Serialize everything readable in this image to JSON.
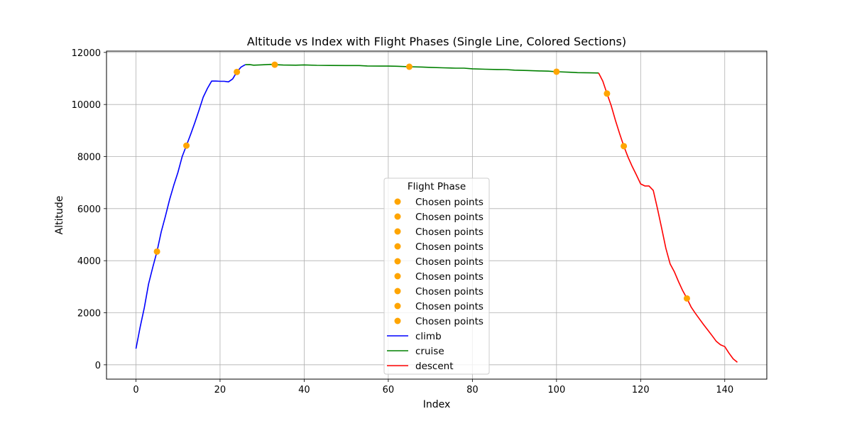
{
  "chart_data": {
    "type": "line",
    "title": "Altitude vs Index with Flight Phases (Single Line, Colored Sections)",
    "xlabel": "Index",
    "ylabel": "Altitude",
    "xlim": [
      -7,
      150
    ],
    "ylim": [
      -550,
      12050
    ],
    "xticks": [
      0,
      20,
      40,
      60,
      80,
      100,
      120,
      140
    ],
    "yticks": [
      0,
      2000,
      4000,
      6000,
      8000,
      10000,
      12000
    ],
    "grid": true,
    "series": [
      {
        "name": "climb",
        "color": "#0000ff",
        "points": [
          [
            0,
            620
          ],
          [
            1,
            1450
          ],
          [
            2,
            2200
          ],
          [
            3,
            3100
          ],
          [
            4,
            3750
          ],
          [
            5,
            4350
          ],
          [
            6,
            5100
          ],
          [
            7,
            5700
          ],
          [
            8,
            6350
          ],
          [
            9,
            6900
          ],
          [
            10,
            7400
          ],
          [
            11,
            8000
          ],
          [
            12,
            8420
          ],
          [
            13,
            8850
          ],
          [
            14,
            9300
          ],
          [
            15,
            9780
          ],
          [
            16,
            10280
          ],
          [
            17,
            10620
          ],
          [
            18,
            10900
          ],
          [
            19,
            10900
          ],
          [
            20,
            10890
          ],
          [
            21,
            10890
          ],
          [
            22,
            10870
          ],
          [
            23,
            10980
          ],
          [
            24,
            11250
          ],
          [
            25,
            11440
          ],
          [
            26,
            11530
          ]
        ]
      },
      {
        "name": "cruise",
        "color": "#008000",
        "points": [
          [
            26,
            11530
          ],
          [
            27,
            11535
          ],
          [
            28,
            11510
          ],
          [
            30,
            11525
          ],
          [
            32,
            11540
          ],
          [
            33,
            11530
          ],
          [
            35,
            11515
          ],
          [
            38,
            11510
          ],
          [
            40,
            11520
          ],
          [
            43,
            11505
          ],
          [
            46,
            11500
          ],
          [
            50,
            11495
          ],
          [
            53,
            11495
          ],
          [
            55,
            11480
          ],
          [
            58,
            11475
          ],
          [
            60,
            11475
          ],
          [
            62,
            11470
          ],
          [
            65,
            11450
          ],
          [
            68,
            11440
          ],
          [
            70,
            11425
          ],
          [
            73,
            11410
          ],
          [
            76,
            11395
          ],
          [
            78,
            11395
          ],
          [
            80,
            11370
          ],
          [
            83,
            11355
          ],
          [
            86,
            11345
          ],
          [
            88,
            11340
          ],
          [
            90,
            11320
          ],
          [
            93,
            11305
          ],
          [
            96,
            11290
          ],
          [
            98,
            11280
          ],
          [
            100,
            11260
          ],
          [
            103,
            11240
          ],
          [
            105,
            11225
          ],
          [
            108,
            11215
          ],
          [
            110,
            11210
          ]
        ]
      },
      {
        "name": "descent",
        "color": "#ff0000",
        "points": [
          [
            110,
            11210
          ],
          [
            111,
            10900
          ],
          [
            112,
            10420
          ],
          [
            113,
            9960
          ],
          [
            114,
            9390
          ],
          [
            115,
            8880
          ],
          [
            116,
            8400
          ],
          [
            117,
            7980
          ],
          [
            118,
            7620
          ],
          [
            119,
            7290
          ],
          [
            120,
            6950
          ],
          [
            121,
            6870
          ],
          [
            122,
            6870
          ],
          [
            123,
            6700
          ],
          [
            124,
            6000
          ],
          [
            125,
            5250
          ],
          [
            126,
            4480
          ],
          [
            127,
            3880
          ],
          [
            128,
            3580
          ],
          [
            129,
            3200
          ],
          [
            130,
            2850
          ],
          [
            131,
            2550
          ],
          [
            132,
            2220
          ],
          [
            133,
            1980
          ],
          [
            134,
            1760
          ],
          [
            135,
            1540
          ],
          [
            136,
            1330
          ],
          [
            137,
            1120
          ],
          [
            138,
            900
          ],
          [
            139,
            770
          ],
          [
            140,
            700
          ],
          [
            141,
            450
          ],
          [
            142,
            230
          ],
          [
            143,
            100
          ]
        ]
      }
    ],
    "chosen_points": {
      "label": "Chosen points",
      "color": "#ffa500",
      "points": [
        [
          5,
          4350
        ],
        [
          12,
          8420
        ],
        [
          24,
          11250
        ],
        [
          33,
          11530
        ],
        [
          65,
          11450
        ],
        [
          100,
          11260
        ],
        [
          112,
          10420
        ],
        [
          116,
          8400
        ],
        [
          131,
          2550
        ]
      ]
    },
    "legend": {
      "title": "Flight Phase",
      "placement": "lower-center",
      "entries": [
        "Chosen points",
        "Chosen points",
        "Chosen points",
        "Chosen points",
        "Chosen points",
        "Chosen points",
        "Chosen points",
        "Chosen points",
        "Chosen points",
        "climb",
        "cruise",
        "descent"
      ]
    }
  }
}
